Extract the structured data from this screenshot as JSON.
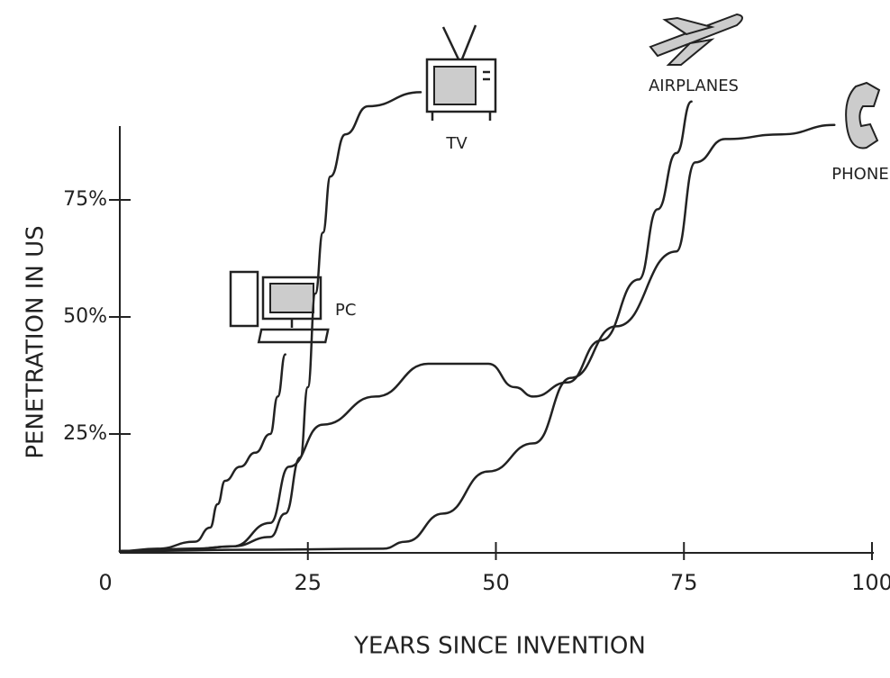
{
  "chart_data": {
    "type": "line",
    "x_label": "YEARS SINCE INVENTION",
    "y_label": "PENETRATION IN US",
    "xlim": [
      0,
      100
    ],
    "ylim": [
      0,
      100
    ],
    "xticks": [
      0,
      25,
      50,
      75,
      100
    ],
    "yticks": [
      {
        "value": 25,
        "label": "25%"
      },
      {
        "value": 50,
        "label": "50%"
      },
      {
        "value": 75,
        "label": "75%"
      }
    ],
    "series": [
      {
        "name": "PC",
        "color": "#222222",
        "x": [
          0,
          5,
          10,
          12,
          13,
          14,
          16,
          18,
          20,
          21,
          22
        ],
        "values": [
          0,
          0.5,
          2,
          5,
          10,
          15,
          18,
          21,
          25,
          33,
          42
        ]
      },
      {
        "name": "TV",
        "color": "#222222",
        "x": [
          0,
          10,
          15,
          20,
          22,
          24,
          25,
          26,
          27,
          28,
          30,
          33,
          40
        ],
        "values": [
          0,
          0.5,
          1,
          3,
          8,
          20,
          35,
          55,
          68,
          80,
          89,
          95,
          98
        ]
      },
      {
        "name": "AIRPLANES",
        "color": "#222222",
        "x": [
          0,
          10,
          15,
          20,
          22.5,
          27,
          34,
          41,
          49,
          52.5,
          55,
          59.5,
          64,
          69,
          71.5,
          74,
          76
        ],
        "values": [
          0,
          0.5,
          1,
          6,
          18,
          27,
          33,
          40,
          40,
          35,
          33,
          36,
          45,
          58,
          73,
          85,
          96
        ]
      },
      {
        "name": "PHONE",
        "color": "#222222",
        "x": [
          0,
          20,
          35,
          38,
          43,
          49,
          55,
          60,
          66,
          74,
          76.5,
          80.5,
          88,
          95
        ],
        "values": [
          0,
          0.3,
          0.5,
          2,
          8,
          17,
          23,
          37,
          48,
          64,
          83,
          88,
          89,
          91
        ]
      }
    ]
  }
}
